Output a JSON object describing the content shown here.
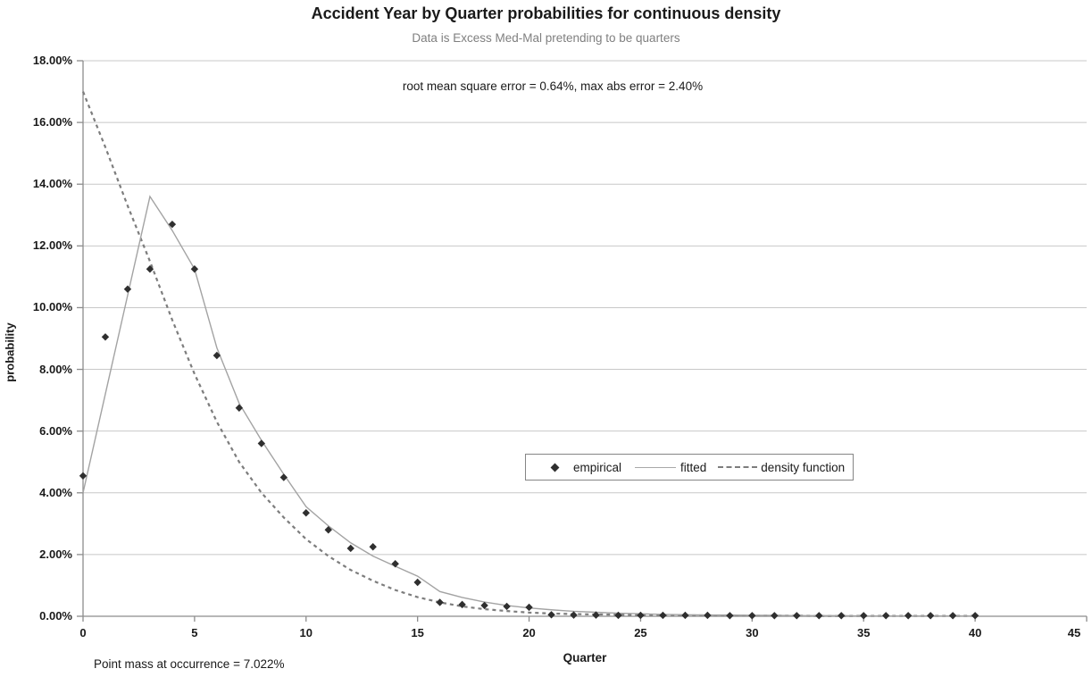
{
  "title": "Accident Year by Quarter probabilities for continuous density",
  "subtitle": "Data is Excess Med-Mal pretending to be quarters",
  "annotation": "root mean square error = 0.64%, max abs error = 2.40%",
  "footnote": "Point mass at occurrence = 7.022%",
  "axes": {
    "x_title": "Quarter",
    "y_title": "probability",
    "x_ticks": [
      "0",
      "5",
      "10",
      "15",
      "20",
      "25",
      "30",
      "35",
      "40",
      "45"
    ],
    "y_ticks": [
      "18.00%",
      "16.00%",
      "14.00%",
      "12.00%",
      "10.00%",
      "8.00%",
      "6.00%",
      "4.00%",
      "2.00%",
      "0.00%"
    ]
  },
  "legend": {
    "items": [
      {
        "label": "empirical",
        "swatch": "diamond-marker"
      },
      {
        "label": "fitted",
        "swatch": "solid-line"
      },
      {
        "label": "density function",
        "swatch": "dashed-line"
      }
    ]
  },
  "colors": {
    "grid": "#c8c8c8",
    "axis": "#8c8c8c",
    "fitted_line": "#a3a3a3",
    "density_line": "#7d7d7d",
    "marker": "#2f2f2f",
    "subtitle_text": "#7f7f7f",
    "text": "#1a1a1a",
    "background": "#ffffff"
  },
  "chart_data": {
    "type": "line",
    "title": "Accident Year by Quarter probabilities for continuous density",
    "subtitle": "Data is Excess Med-Mal pretending to be quarters",
    "xlabel": "Quarter",
    "ylabel": "probability",
    "unit": "percent",
    "xlim": [
      0,
      45
    ],
    "ylim": [
      0,
      18
    ],
    "grid": "horizontal-only",
    "legend_position": "inside-right-middle",
    "x": [
      0,
      1,
      2,
      3,
      4,
      5,
      6,
      7,
      8,
      9,
      10,
      11,
      12,
      13,
      14,
      15,
      16,
      17,
      18,
      19,
      20,
      21,
      22,
      23,
      24,
      25,
      26,
      27,
      28,
      29,
      30,
      31,
      32,
      33,
      34,
      35,
      36,
      37,
      38,
      39,
      40
    ],
    "series": [
      {
        "name": "empirical",
        "style": "scatter-diamond",
        "values": [
          4.55,
          9.05,
          10.6,
          11.25,
          12.7,
          11.25,
          8.45,
          6.75,
          5.6,
          4.5,
          3.35,
          2.8,
          2.2,
          2.25,
          1.7,
          1.1,
          0.45,
          0.38,
          0.35,
          0.32,
          0.29,
          0.05,
          0.04,
          0.04,
          0.03,
          0.03,
          0.03,
          0.03,
          0.03,
          0.02,
          0.02,
          0.02,
          0.02,
          0.02,
          0.02,
          0.02,
          0.02,
          0.02,
          0.02,
          0.02,
          0.02
        ]
      },
      {
        "name": "fitted",
        "style": "solid-line",
        "values": [
          4.0,
          7.2,
          10.4,
          13.6,
          12.5,
          11.25,
          8.7,
          6.9,
          5.7,
          4.6,
          3.55,
          2.93,
          2.38,
          1.95,
          1.62,
          1.3,
          0.8,
          0.61,
          0.46,
          0.35,
          0.27,
          0.21,
          0.16,
          0.13,
          0.1,
          0.08,
          0.06,
          0.05,
          0.04,
          0.04,
          0.03,
          0.03,
          0.02,
          0.02,
          0.02,
          0.01,
          0.01,
          0.01,
          0.01,
          0.01,
          0.01
        ]
      },
      {
        "name": "density function",
        "style": "dashed-line",
        "values": [
          17.0,
          15.2,
          13.3,
          11.5,
          9.6,
          7.85,
          6.3,
          5.0,
          4.0,
          3.2,
          2.5,
          1.95,
          1.5,
          1.15,
          0.85,
          0.62,
          0.45,
          0.32,
          0.23,
          0.17,
          0.12,
          0.09,
          0.07,
          0.06,
          0.05,
          0.04,
          0.04,
          0.03,
          0.03,
          0.02,
          0.02,
          0.02,
          0.02,
          0.01,
          0.01,
          0.01,
          0.01,
          0.01,
          0.01,
          0.01,
          0.01
        ]
      }
    ]
  }
}
